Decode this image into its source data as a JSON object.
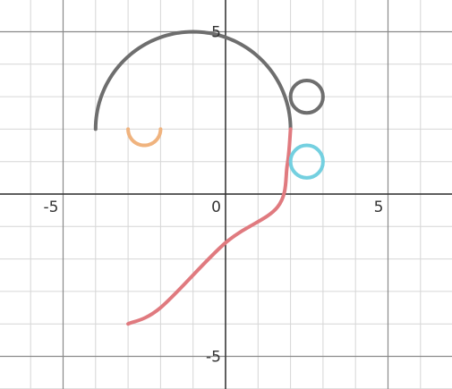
{
  "chart_data": {
    "type": "line",
    "title": "",
    "xlabel": "",
    "ylabel": "",
    "xlim": [
      -7,
      7
    ],
    "ylim": [
      -6,
      6
    ],
    "grid": true,
    "minor_grid_step": 1,
    "major_grid_step": 5,
    "x_tick_labels": [
      {
        "value": -5,
        "label": "-5"
      },
      {
        "value": 0,
        "label": "0"
      },
      {
        "value": 5,
        "label": "5"
      }
    ],
    "y_tick_labels": [
      {
        "value": 5,
        "label": "5"
      },
      {
        "value": -5,
        "label": "-5"
      }
    ],
    "series": [
      {
        "kind": "arc",
        "color": "#6e6e6e",
        "center": [
          -1,
          2
        ],
        "radius": 3,
        "start_angle_deg": 180,
        "end_angle_deg": 0
      },
      {
        "kind": "arc",
        "color": "#f0b37e",
        "center": [
          -2.5,
          2
        ],
        "radius": 0.5,
        "start_angle_deg": 180,
        "end_angle_deg": 360
      },
      {
        "kind": "curve",
        "color": "#e07a7f",
        "points": [
          [
            2,
            2
          ],
          [
            1.9,
            0.9
          ],
          [
            1.6,
            -0.4
          ],
          [
            0,
            -1.5
          ],
          [
            -2,
            -3.5
          ],
          [
            -3,
            -4
          ]
        ]
      },
      {
        "kind": "circle",
        "color": "#6e6e6e",
        "center": [
          2.5,
          3
        ],
        "radius": 0.5
      },
      {
        "kind": "circle",
        "color": "#74d0e0",
        "center": [
          2.5,
          1
        ],
        "radius": 0.5
      }
    ]
  }
}
